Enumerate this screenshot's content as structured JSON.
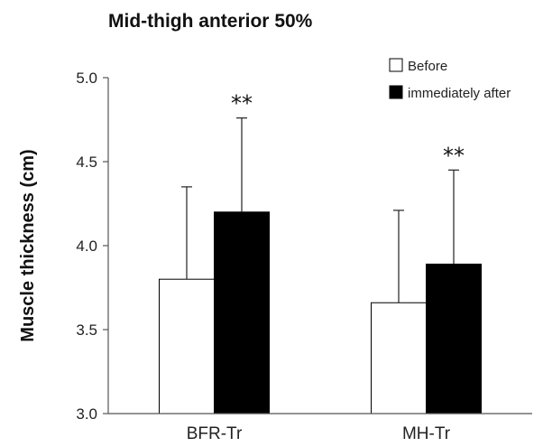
{
  "chart_data": {
    "type": "bar",
    "title": "Mid-thigh anterior 50%",
    "ylabel": "Muscle thickness (cm)",
    "xlabel": "",
    "categories": [
      "BFR-Tr",
      "MH-Tr"
    ],
    "ylim": [
      3.0,
      5.0
    ],
    "yticks": [
      "3.0",
      "3.5",
      "4.0",
      "4.5",
      "5.0"
    ],
    "grid": false,
    "legend_position": "top-right",
    "series": [
      {
        "name": "Before",
        "color": "#ffffff",
        "values": [
          3.8,
          3.66
        ],
        "error_upper": [
          4.35,
          4.21
        ]
      },
      {
        "name": "immediately after",
        "color": "#000000",
        "values": [
          4.2,
          3.89
        ],
        "error_upper": [
          4.76,
          4.45
        ]
      }
    ],
    "annotations": [
      {
        "text": "**",
        "category": "BFR-Tr",
        "series": "immediately after"
      },
      {
        "text": "**",
        "category": "MH-Tr",
        "series": "immediately after"
      }
    ]
  }
}
